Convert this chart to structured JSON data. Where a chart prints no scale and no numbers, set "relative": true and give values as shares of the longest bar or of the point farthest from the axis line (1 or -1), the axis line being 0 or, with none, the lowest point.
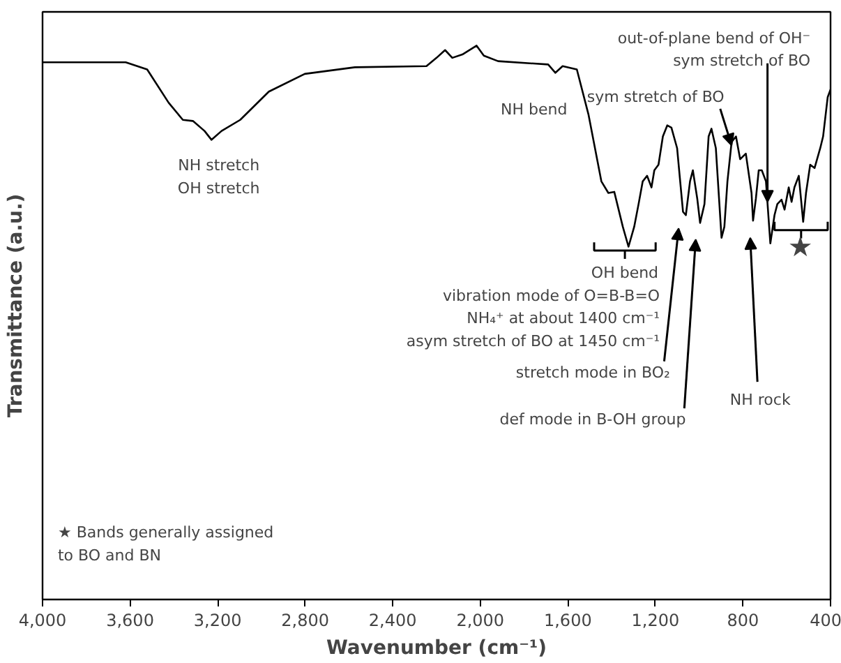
{
  "chart_data": {
    "type": "line",
    "relative": true,
    "xlabel": "Wavenumber (cm⁻¹)",
    "ylabel": "Transmittance (a.u.)",
    "xlim": [
      4000,
      400
    ],
    "xticks": [
      {
        "value": 4000,
        "label": "4,000"
      },
      {
        "value": 3600,
        "label": "3,600"
      },
      {
        "value": 3200,
        "label": "3,200"
      },
      {
        "value": 2800,
        "label": "2,800"
      },
      {
        "value": 2400,
        "label": "2,400"
      },
      {
        "value": 2000,
        "label": "2,000"
      },
      {
        "value": 1600,
        "label": "1,600"
      },
      {
        "value": 1200,
        "label": "1,200"
      },
      {
        "value": 800,
        "label": "800"
      },
      {
        "value": 400,
        "label": "400"
      }
    ],
    "tick_labels": "x",
    "grid": false,
    "series": [
      {
        "color": "#000000",
        "x": [
          4000,
          3620,
          3522,
          3424,
          3359,
          3313,
          3260,
          3228,
          3182,
          3097,
          2966,
          2802,
          2573,
          2246,
          2200,
          2161,
          2128,
          2082,
          2017,
          1984,
          1919,
          1690,
          1657,
          1624,
          1559,
          1506,
          1447,
          1415,
          1388,
          1349,
          1323,
          1297,
          1277,
          1258,
          1238,
          1218,
          1205,
          1186,
          1166,
          1146,
          1127,
          1101,
          1074,
          1061,
          1042,
          1029,
          1009,
          996,
          976,
          957,
          944,
          924,
          898,
          885,
          871,
          852,
          832,
          813,
          787,
          761,
          754,
          741,
          728,
          714,
          695,
          675,
          656,
          643,
          624,
          610,
          591,
          578,
          565,
          545,
          525,
          512,
          493,
          473,
          447,
          434,
          413,
          400
        ],
        "values": [
          0.97,
          0.97,
          0.957,
          0.897,
          0.866,
          0.864,
          0.846,
          0.83,
          0.846,
          0.866,
          0.917,
          0.949,
          0.961,
          0.963,
          0.978,
          0.992,
          0.978,
          0.984,
          1.0,
          0.982,
          0.972,
          0.966,
          0.951,
          0.963,
          0.957,
          0.876,
          0.755,
          0.734,
          0.736,
          0.673,
          0.637,
          0.673,
          0.714,
          0.755,
          0.765,
          0.744,
          0.775,
          0.785,
          0.836,
          0.856,
          0.852,
          0.815,
          0.7,
          0.694,
          0.755,
          0.775,
          0.724,
          0.68,
          0.714,
          0.836,
          0.85,
          0.815,
          0.653,
          0.673,
          0.755,
          0.826,
          0.836,
          0.795,
          0.805,
          0.734,
          0.684,
          0.724,
          0.775,
          0.775,
          0.755,
          0.643,
          0.694,
          0.714,
          0.722,
          0.704,
          0.744,
          0.718,
          0.744,
          0.765,
          0.682,
          0.734,
          0.785,
          0.779,
          0.815,
          0.836,
          0.907,
          0.921
        ]
      }
    ],
    "annotations": [
      "NH stretch\nOH stretch",
      "NH bend",
      "sym stretch of BO",
      "out-of-plane bend of OH⁻\nsym stretch of BO",
      "OH bend",
      "vibration mode of O=B-B=O\nNH₄⁺ at about 1400 cm⁻¹\nasym stretch of BO at 1450 cm⁻¹",
      "stretch mode in BO₂",
      "def mode in B-OH group",
      "NH rock",
      "★",
      "★ Bands generally assigned\n    to BO and BN"
    ]
  }
}
